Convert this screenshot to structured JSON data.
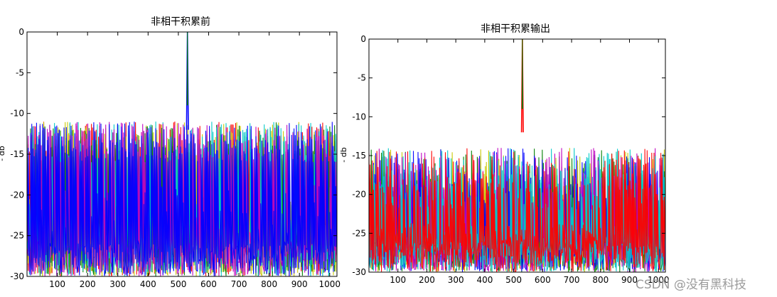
{
  "watermark": "CSDN @没有黑科技",
  "chart_data": [
    {
      "type": "line",
      "title": "非相干积累前",
      "xlabel": "",
      "ylabel": "- db",
      "xlim": [
        0,
        1024
      ],
      "ylim": [
        -30,
        0
      ],
      "xticks": [
        100,
        200,
        300,
        400,
        500,
        600,
        700,
        800,
        900,
        1000
      ],
      "yticks": [
        0,
        -5,
        -10,
        -15,
        -20,
        -25,
        -30
      ],
      "grid": false,
      "noise_floor": -30,
      "noise_peak_range": [
        -16,
        -11
      ],
      "peak": {
        "x": 530,
        "y": 0
      },
      "series_colors": [
        "#ff0000",
        "#c8c800",
        "#008000",
        "#00c8c8",
        "#c000c0",
        "#0000ff"
      ],
      "series": [
        {
          "color": "#ff0000"
        },
        {
          "color": "#c8c800"
        },
        {
          "color": "#008000"
        },
        {
          "color": "#00c8c8"
        },
        {
          "color": "#c000c0"
        },
        {
          "color": "#0000ff"
        }
      ]
    },
    {
      "type": "line",
      "title": "非相干积累输出",
      "xlabel": "",
      "ylabel": "- db",
      "xlim": [
        0,
        1024
      ],
      "ylim": [
        -30,
        0
      ],
      "xticks": [
        100,
        200,
        300,
        400,
        500,
        600,
        700,
        800,
        900,
        1000
      ],
      "yticks": [
        0,
        -5,
        -10,
        -15,
        -20,
        -25,
        -30
      ],
      "grid": false,
      "noise_floor": -30,
      "noise_peak_range": [
        -22,
        -14
      ],
      "peak": {
        "x": 530,
        "y": 0
      },
      "series_colors": [
        "#c8c800",
        "#008000",
        "#0000ff",
        "#c000c0",
        "#00c8c8",
        "#ff0000"
      ],
      "series": [
        {
          "color": "#c8c800"
        },
        {
          "color": "#008000"
        },
        {
          "color": "#0000ff"
        },
        {
          "color": "#c000c0"
        },
        {
          "color": "#00c8c8"
        },
        {
          "color": "#ff0000"
        }
      ]
    }
  ]
}
